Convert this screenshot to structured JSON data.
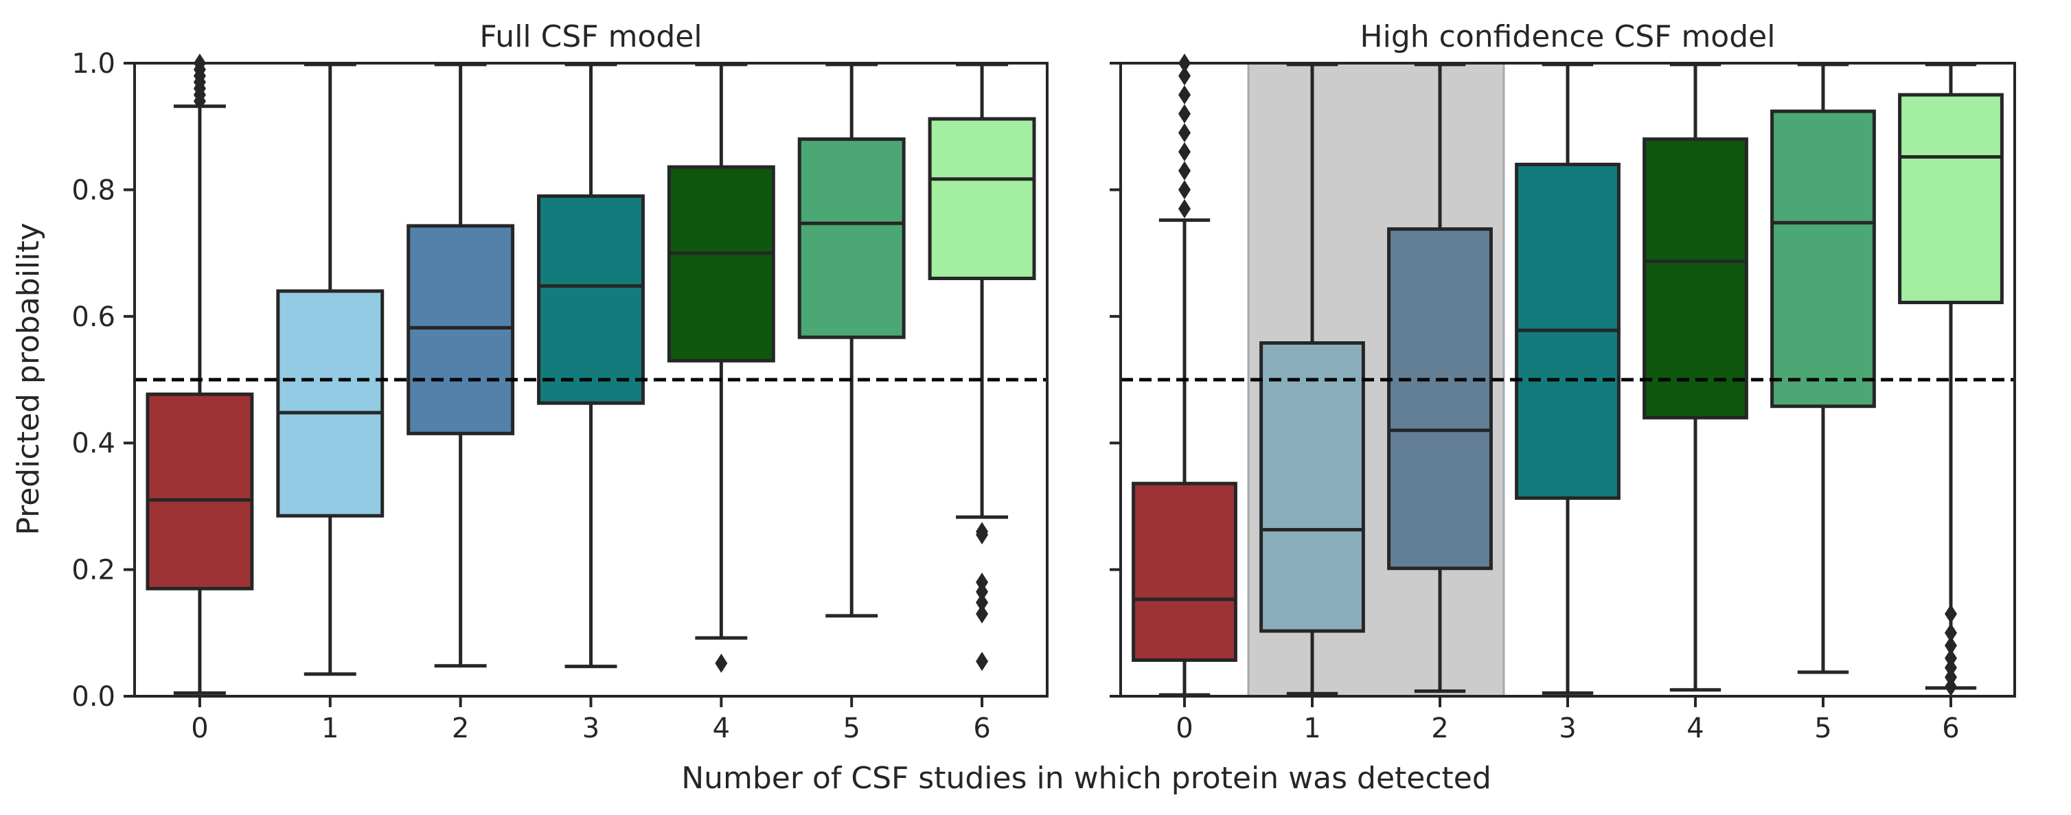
{
  "figure": {
    "xlabel": "Number of CSF studies in which protein was detected",
    "ylabel": "Predicted probability"
  },
  "colors": {
    "axis": "#262626",
    "box_edge": "#262626",
    "shade": "#cccccc",
    "shade_edge": "#a8a8a8"
  },
  "chart_data": [
    {
      "type": "box",
      "title": "Full CSF model",
      "xlabel": "Number of CSF studies in which protein was detected",
      "ylabel": "Predicted probability",
      "categories": [
        "0",
        "1",
        "2",
        "3",
        "4",
        "5",
        "6"
      ],
      "ylim": [
        0.0,
        1.0
      ],
      "yticks": [
        "0.0",
        "0.2",
        "0.4",
        "0.6",
        "0.8",
        "1.0"
      ],
      "threshold": 0.5,
      "grid": false,
      "boxes": [
        {
          "category": "0",
          "whisker_low": 0.005,
          "q1": 0.17,
          "median": 0.31,
          "q3": 0.477,
          "whisker_high": 0.932,
          "outliers": [
            0.94,
            0.95,
            0.96,
            0.97,
            0.98,
            0.99,
            1.0
          ],
          "color": "#9e3336"
        },
        {
          "category": "1",
          "whisker_low": 0.035,
          "q1": 0.285,
          "median": 0.448,
          "q3": 0.64,
          "whisker_high": 0.998,
          "outliers": [],
          "color": "#92cbe3"
        },
        {
          "category": "2",
          "whisker_low": 0.048,
          "q1": 0.415,
          "median": 0.582,
          "q3": 0.743,
          "whisker_high": 0.998,
          "outliers": [],
          "color": "#5281a9"
        },
        {
          "category": "3",
          "whisker_low": 0.047,
          "q1": 0.463,
          "median": 0.648,
          "q3": 0.79,
          "whisker_high": 0.998,
          "outliers": [],
          "color": "#137b7b"
        },
        {
          "category": "4",
          "whisker_low": 0.092,
          "q1": 0.53,
          "median": 0.7,
          "q3": 0.836,
          "whisker_high": 0.998,
          "outliers": [
            0.052
          ],
          "color": "#0f560f"
        },
        {
          "category": "5",
          "whisker_low": 0.127,
          "q1": 0.567,
          "median": 0.747,
          "q3": 0.88,
          "whisker_high": 0.998,
          "outliers": [],
          "color": "#4ba773"
        },
        {
          "category": "6",
          "whisker_low": 0.283,
          "q1": 0.66,
          "median": 0.817,
          "q3": 0.912,
          "whisker_high": 0.998,
          "outliers": [
            0.26,
            0.255,
            0.18,
            0.165,
            0.148,
            0.13,
            0.055
          ],
          "color": "#a3eea0"
        }
      ]
    },
    {
      "type": "box",
      "title": "High confidence CSF model",
      "xlabel": "Number of CSF studies in which protein was detected",
      "ylabel": "",
      "categories": [
        "0",
        "1",
        "2",
        "3",
        "4",
        "5",
        "6"
      ],
      "ylim": [
        0.0,
        1.0
      ],
      "yticks": [],
      "threshold": 0.5,
      "shaded_categories": [
        "1",
        "2"
      ],
      "grid": false,
      "boxes": [
        {
          "category": "0",
          "whisker_low": 0.002,
          "q1": 0.057,
          "median": 0.153,
          "q3": 0.336,
          "whisker_high": 0.752,
          "outliers": [
            0.77,
            0.8,
            0.83,
            0.86,
            0.89,
            0.92,
            0.95,
            0.98,
            1.0
          ],
          "color": "#9e3336"
        },
        {
          "category": "1",
          "whisker_low": 0.004,
          "q1": 0.103,
          "median": 0.263,
          "q3": 0.558,
          "whisker_high": 0.998,
          "outliers": [],
          "color": "#8aadbb"
        },
        {
          "category": "2",
          "whisker_low": 0.008,
          "q1": 0.202,
          "median": 0.42,
          "q3": 0.738,
          "whisker_high": 0.998,
          "outliers": [],
          "color": "#637f96"
        },
        {
          "category": "3",
          "whisker_low": 0.005,
          "q1": 0.313,
          "median": 0.578,
          "q3": 0.84,
          "whisker_high": 0.998,
          "outliers": [],
          "color": "#137b7b"
        },
        {
          "category": "4",
          "whisker_low": 0.01,
          "q1": 0.44,
          "median": 0.687,
          "q3": 0.88,
          "whisker_high": 0.998,
          "outliers": [],
          "color": "#0f560f"
        },
        {
          "category": "5",
          "whisker_low": 0.038,
          "q1": 0.458,
          "median": 0.748,
          "q3": 0.924,
          "whisker_high": 0.998,
          "outliers": [],
          "color": "#4ba773"
        },
        {
          "category": "6",
          "whisker_low": 0.013,
          "q1": 0.622,
          "median": 0.852,
          "q3": 0.95,
          "whisker_high": 0.998,
          "outliers": [
            0.13,
            0.1,
            0.08,
            0.06,
            0.045,
            0.03,
            0.015
          ],
          "color": "#a3eea0"
        }
      ]
    }
  ]
}
